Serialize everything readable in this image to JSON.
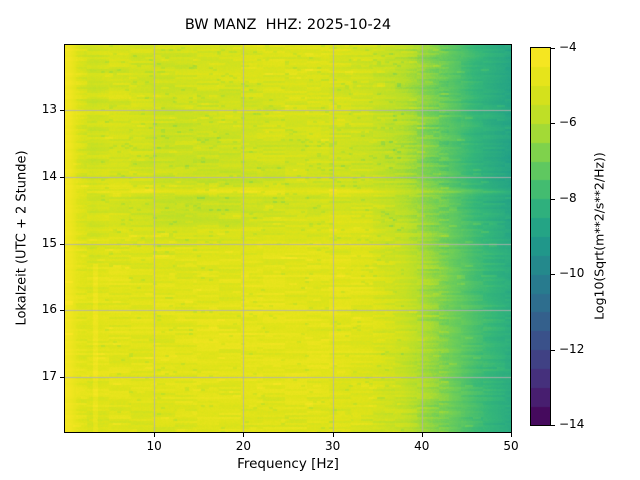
{
  "chart_data": {
    "type": "heatmap",
    "title": "BW MANZ  HHZ: 2025-10-24",
    "xlabel": "Frequency [Hz]",
    "ylabel": "Lokalzeit (UTC + 2 Stunde)",
    "colorbar_label": "Log10(Sqrt(m**2/s**2/Hz))",
    "colormap": "viridis",
    "grid": true,
    "grid_color": "#b0b0b0",
    "x_range_hz": [
      0,
      50
    ],
    "y_range_hours": [
      12.03,
      17.82
    ],
    "value_range": [
      -14,
      -4
    ],
    "x_ticks": {
      "values": [
        10,
        20,
        30,
        40,
        50
      ],
      "labels": [
        "10",
        "20",
        "30",
        "40",
        "50"
      ]
    },
    "y_ticks": {
      "values": [
        13,
        14,
        15,
        16,
        17
      ],
      "labels": [
        "13",
        "14",
        "15",
        "16",
        "17"
      ]
    },
    "colorbar_ticks": {
      "values": [
        -4,
        -6,
        -8,
        -10,
        -12,
        -14
      ],
      "labels": [
        "−4",
        "−6",
        "−8",
        "−10",
        "−12",
        "−14"
      ]
    },
    "colorbar_levels": 20,
    "freq_bins": [
      0.5,
      1.5,
      3,
      5,
      8,
      12,
      16,
      20,
      25,
      30,
      34,
      38,
      42,
      46,
      50
    ],
    "time_bins": [
      12.0,
      12.5,
      13.0,
      13.5,
      14.0,
      14.15,
      14.22,
      14.3,
      14.6,
      15.0,
      15.5,
      16.0,
      16.5,
      17.0,
      17.4,
      17.83
    ],
    "values": [
      [
        -4.4,
        -5.0,
        -5.3,
        -5.1,
        -5.2,
        -5.3,
        -5.2,
        -5.1,
        -5.0,
        -5.1,
        -5.3,
        -5.8,
        -6.9,
        -7.9,
        -8.6
      ],
      [
        -4.4,
        -5.0,
        -5.4,
        -5.2,
        -5.3,
        -5.4,
        -5.3,
        -5.2,
        -5.1,
        -5.1,
        -5.4,
        -5.9,
        -7.0,
        -8.0,
        -8.7
      ],
      [
        -4.4,
        -5.0,
        -5.4,
        -5.2,
        -5.3,
        -5.5,
        -5.4,
        -5.4,
        -5.2,
        -5.2,
        -5.4,
        -6.0,
        -7.0,
        -8.0,
        -8.7
      ],
      [
        -4.4,
        -5.1,
        -5.5,
        -5.3,
        -5.4,
        -5.5,
        -5.5,
        -5.4,
        -5.3,
        -5.3,
        -5.5,
        -6.0,
        -7.1,
        -8.1,
        -8.8
      ],
      [
        -4.4,
        -5.1,
        -5.4,
        -5.2,
        -5.3,
        -5.5,
        -5.6,
        -5.5,
        -5.4,
        -5.4,
        -5.5,
        -6.1,
        -7.1,
        -8.1,
        -8.8
      ],
      [
        -4.4,
        -5.0,
        -5.3,
        -5.1,
        -5.2,
        -5.4,
        -5.5,
        -5.4,
        -5.3,
        -5.3,
        -5.4,
        -6.0,
        -7.0,
        -8.0,
        -8.7
      ],
      [
        -4.3,
        -4.8,
        -4.9,
        -4.6,
        -4.6,
        -4.7,
        -4.7,
        -4.7,
        -4.7,
        -4.7,
        -4.8,
        -5.3,
        -6.4,
        -7.5,
        -8.3
      ],
      [
        -4.4,
        -5.0,
        -5.3,
        -5.2,
        -5.4,
        -5.7,
        -5.7,
        -5.6,
        -5.5,
        -5.4,
        -5.5,
        -6.0,
        -7.0,
        -8.0,
        -8.7
      ],
      [
        -4.4,
        -5.0,
        -5.3,
        -5.1,
        -5.3,
        -5.5,
        -5.5,
        -5.4,
        -5.3,
        -5.2,
        -5.3,
        -5.9,
        -6.9,
        -7.9,
        -8.6
      ],
      [
        -4.4,
        -4.9,
        -5.2,
        -5.0,
        -5.1,
        -5.2,
        -5.1,
        -5.0,
        -5.0,
        -5.0,
        -5.1,
        -5.6,
        -6.7,
        -7.7,
        -8.5
      ],
      [
        -4.4,
        -4.9,
        -5.1,
        -4.9,
        -5.0,
        -5.0,
        -4.9,
        -4.9,
        -4.9,
        -4.9,
        -5.0,
        -5.5,
        -6.6,
        -7.7,
        -8.4
      ],
      [
        -4.4,
        -4.9,
        -5.0,
        -4.9,
        -4.9,
        -4.9,
        -4.9,
        -4.8,
        -4.8,
        -4.9,
        -5.0,
        -5.5,
        -6.6,
        -7.6,
        -8.4
      ],
      [
        -4.4,
        -4.9,
        -5.0,
        -4.9,
        -4.9,
        -4.9,
        -4.8,
        -4.8,
        -4.8,
        -4.9,
        -5.0,
        -5.5,
        -6.6,
        -7.6,
        -8.4
      ],
      [
        -4.4,
        -4.9,
        -5.1,
        -4.9,
        -5.0,
        -4.9,
        -4.9,
        -4.9,
        -4.9,
        -4.9,
        -5.1,
        -5.6,
        -6.6,
        -7.7,
        -8.4
      ],
      [
        -4.4,
        -4.9,
        -5.1,
        -5.0,
        -5.0,
        -5.0,
        -4.9,
        -4.9,
        -4.9,
        -5.0,
        -5.1,
        -5.6,
        -6.7,
        -7.7,
        -8.5
      ],
      [
        -4.4,
        -5.0,
        -5.2,
        -5.0,
        -5.1,
        -5.0,
        -5.0,
        -5.0,
        -5.0,
        -5.0,
        -5.2,
        -5.7,
        -6.8,
        -7.8,
        -8.5
      ]
    ],
    "features": {
      "bright_horizontal_stripe_hour": 14.22,
      "bright_vertical_line": {
        "freq_hz": 3.4,
        "from_hour": 15.3,
        "to_hour": 17.83,
        "delta": 0.45,
        "half_width_hz": 0.25
      }
    }
  }
}
